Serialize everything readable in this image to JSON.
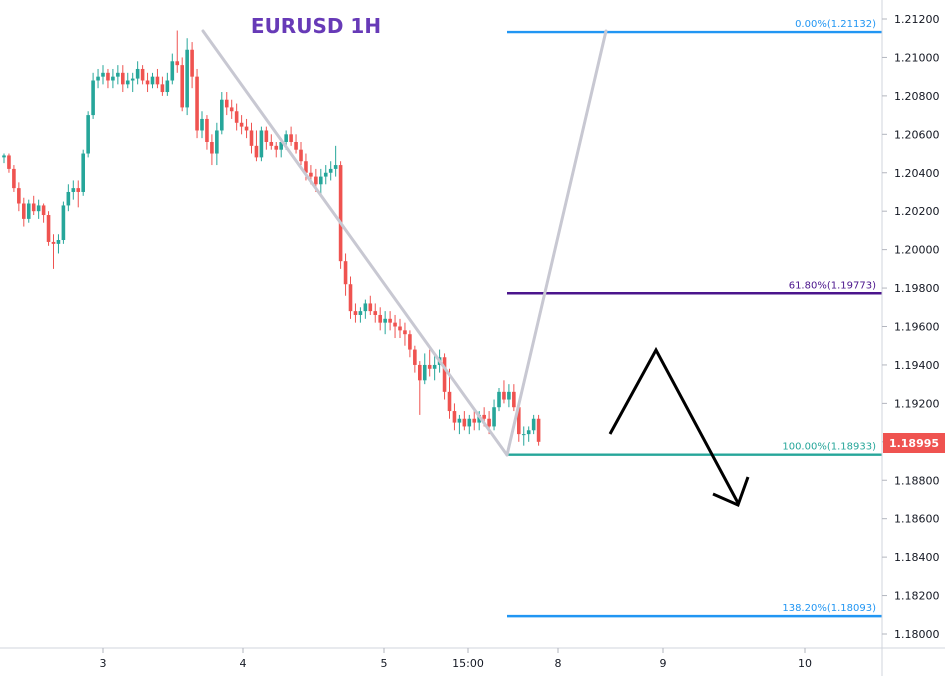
{
  "chart_data": {
    "type": "candlestick",
    "title": "EURUSD 1H",
    "xlabel": "",
    "ylabel": "",
    "ylim": [
      1.179,
      1.213
    ],
    "y_ticks": [
      "1.21200",
      "1.21000",
      "1.20800",
      "1.20600",
      "1.20400",
      "1.20200",
      "1.20000",
      "1.19800",
      "1.19600",
      "1.19400",
      "1.19200",
      "1.19000",
      "1.18800",
      "1.18600",
      "1.18400",
      "1.18200",
      "1.18000"
    ],
    "x_ticks": [
      "3",
      "4",
      "5",
      "15:00",
      "8",
      "9",
      "10"
    ],
    "grid": false,
    "current_price": "1.18995",
    "colors": {
      "up": "#26a69a",
      "down": "#ef5350",
      "fib_0": "#2196f3",
      "fib_618": "#4a148c",
      "fib_100": "#26a69a",
      "fib_1382": "#2196f3",
      "trend": "#c8c8d2",
      "title": "#673ab7",
      "price_tag": "#ef5350"
    },
    "fib_levels": [
      {
        "label": "0.00%(1.21132)",
        "price": 1.21132,
        "color": "#2196f3"
      },
      {
        "label": "61.80%(1.19773)",
        "price": 1.19773,
        "color": "#4a148c"
      },
      {
        "label": "100.00%(1.18933)",
        "price": 1.18933,
        "color": "#26a69a"
      },
      {
        "label": "138.20%(1.18093)",
        "price": 1.18093,
        "color": "#2196f3"
      }
    ],
    "candles": [
      [
        1.2048,
        1.205,
        1.2045,
        1.2049
      ],
      [
        1.2049,
        1.205,
        1.204,
        1.2042
      ],
      [
        1.2042,
        1.2044,
        1.203,
        1.2032
      ],
      [
        1.2032,
        1.2035,
        1.202,
        1.2024
      ],
      [
        1.2024,
        1.2027,
        1.2012,
        1.2016
      ],
      [
        1.2016,
        1.2026,
        1.2014,
        1.2024
      ],
      [
        1.2024,
        1.2028,
        1.2018,
        1.202
      ],
      [
        1.202,
        1.2026,
        1.2016,
        1.2023
      ],
      [
        1.2023,
        1.2024,
        1.2014,
        1.2018
      ],
      [
        1.2018,
        1.202,
        1.2002,
        1.2004
      ],
      [
        1.2004,
        1.2008,
        1.199,
        1.2003
      ],
      [
        1.2003,
        1.2008,
        1.1998,
        1.2005
      ],
      [
        1.2005,
        1.2025,
        1.2003,
        1.2023
      ],
      [
        1.2023,
        1.2034,
        1.202,
        1.203
      ],
      [
        1.203,
        1.2036,
        1.2026,
        1.2032
      ],
      [
        1.2032,
        1.2036,
        1.2022,
        1.203
      ],
      [
        1.203,
        1.2052,
        1.2028,
        1.205
      ],
      [
        1.205,
        1.2072,
        1.2048,
        1.207
      ],
      [
        1.207,
        1.2092,
        1.2068,
        1.2088
      ],
      [
        1.2088,
        1.2094,
        1.2084,
        1.209
      ],
      [
        1.209,
        1.2096,
        1.2086,
        1.2092
      ],
      [
        1.2092,
        1.2094,
        1.2084,
        1.2088
      ],
      [
        1.2088,
        1.2094,
        1.2084,
        1.209
      ],
      [
        1.209,
        1.2096,
        1.2086,
        1.2092
      ],
      [
        1.2092,
        1.2096,
        1.2082,
        1.2086
      ],
      [
        1.2086,
        1.2092,
        1.2084,
        1.2088
      ],
      [
        1.2088,
        1.2092,
        1.2082,
        1.2089
      ],
      [
        1.2089,
        1.2098,
        1.2086,
        1.2094
      ],
      [
        1.2094,
        1.2096,
        1.2086,
        1.2088
      ],
      [
        1.2088,
        1.2092,
        1.2082,
        1.2086
      ],
      [
        1.2086,
        1.2092,
        1.2084,
        1.209
      ],
      [
        1.209,
        1.2094,
        1.2084,
        1.2086
      ],
      [
        1.2086,
        1.209,
        1.208,
        1.2082
      ],
      [
        1.2082,
        1.2092,
        1.208,
        1.2088
      ],
      [
        1.2088,
        1.2102,
        1.2086,
        1.2098
      ],
      [
        1.2098,
        1.2114,
        1.2092,
        1.2096
      ],
      [
        1.2096,
        1.21,
        1.2072,
        1.2074
      ],
      [
        1.2074,
        1.211,
        1.207,
        1.2104
      ],
      [
        1.2104,
        1.2108,
        1.2084,
        1.209
      ],
      [
        1.209,
        1.2094,
        1.2058,
        1.2062
      ],
      [
        1.2062,
        1.2072,
        1.2058,
        1.2068
      ],
      [
        1.2068,
        1.207,
        1.2052,
        1.2056
      ],
      [
        1.2056,
        1.206,
        1.2044,
        1.205
      ],
      [
        1.205,
        1.2066,
        1.2044,
        1.2062
      ],
      [
        1.2062,
        1.2082,
        1.206,
        1.2078
      ],
      [
        1.2078,
        1.2082,
        1.207,
        1.2074
      ],
      [
        1.2074,
        1.2078,
        1.2068,
        1.2072
      ],
      [
        1.2072,
        1.2076,
        1.2062,
        1.2066
      ],
      [
        1.2066,
        1.207,
        1.206,
        1.2064
      ],
      [
        1.2064,
        1.2068,
        1.2058,
        1.2062
      ],
      [
        1.2062,
        1.2066,
        1.205,
        1.2054
      ],
      [
        1.2054,
        1.2062,
        1.2046,
        1.2048
      ],
      [
        1.2048,
        1.2064,
        1.2046,
        1.2062
      ],
      [
        1.2062,
        1.2064,
        1.2052,
        1.2056
      ],
      [
        1.2056,
        1.206,
        1.2052,
        1.2054
      ],
      [
        1.2054,
        1.2056,
        1.2048,
        1.2052
      ],
      [
        1.2052,
        1.2058,
        1.2048,
        1.2056
      ],
      [
        1.2056,
        1.2062,
        1.2052,
        1.206
      ],
      [
        1.206,
        1.2064,
        1.2054,
        1.2056
      ],
      [
        1.2056,
        1.206,
        1.205,
        1.2052
      ],
      [
        1.2052,
        1.2056,
        1.2044,
        1.2046
      ],
      [
        1.2046,
        1.205,
        1.2036,
        1.204
      ],
      [
        1.204,
        1.2044,
        1.2034,
        1.2038
      ],
      [
        1.2038,
        1.2042,
        1.203,
        1.2034
      ],
      [
        1.2034,
        1.2042,
        1.2028,
        1.2038
      ],
      [
        1.2038,
        1.2044,
        1.2034,
        1.204
      ],
      [
        1.204,
        1.2046,
        1.2036,
        1.2042
      ],
      [
        1.2042,
        1.2054,
        1.2038,
        1.2044
      ],
      [
        1.2044,
        1.2046,
        1.199,
        1.1994
      ],
      [
        1.1994,
        1.1998,
        1.1976,
        1.1982
      ],
      [
        1.1982,
        1.1986,
        1.1964,
        1.1968
      ],
      [
        1.1968,
        1.1972,
        1.1962,
        1.1966
      ],
      [
        1.1966,
        1.197,
        1.1962,
        1.1968
      ],
      [
        1.1968,
        1.1974,
        1.1964,
        1.1972
      ],
      [
        1.1972,
        1.1976,
        1.1966,
        1.1968
      ],
      [
        1.1968,
        1.1972,
        1.1962,
        1.1966
      ],
      [
        1.1966,
        1.197,
        1.1958,
        1.1962
      ],
      [
        1.1962,
        1.1968,
        1.1956,
        1.1964
      ],
      [
        1.1964,
        1.1968,
        1.1958,
        1.1962
      ],
      [
        1.1962,
        1.1966,
        1.1954,
        1.196
      ],
      [
        1.196,
        1.1964,
        1.1954,
        1.1958
      ],
      [
        1.1958,
        1.1962,
        1.195,
        1.1956
      ],
      [
        1.1956,
        1.1958,
        1.1944,
        1.1948
      ],
      [
        1.1948,
        1.195,
        1.1936,
        1.194
      ],
      [
        1.194,
        1.1942,
        1.1914,
        1.1932
      ],
      [
        1.1932,
        1.1946,
        1.193,
        1.194
      ],
      [
        1.194,
        1.1948,
        1.1934,
        1.1938
      ],
      [
        1.1938,
        1.1946,
        1.1932,
        1.194
      ],
      [
        1.194,
        1.1948,
        1.1936,
        1.1944
      ],
      [
        1.1944,
        1.1946,
        1.1922,
        1.1926
      ],
      [
        1.1926,
        1.1938,
        1.1912,
        1.1916
      ],
      [
        1.1916,
        1.192,
        1.1906,
        1.191
      ],
      [
        1.191,
        1.1914,
        1.1904,
        1.1912
      ],
      [
        1.1912,
        1.1916,
        1.1906,
        1.1908
      ],
      [
        1.1908,
        1.1914,
        1.1904,
        1.1912
      ],
      [
        1.1912,
        1.1916,
        1.1906,
        1.191
      ],
      [
        1.191,
        1.1916,
        1.1906,
        1.1914
      ],
      [
        1.1914,
        1.1918,
        1.1908,
        1.1912
      ],
      [
        1.1912,
        1.1916,
        1.1904,
        1.1908
      ],
      [
        1.1908,
        1.1922,
        1.1906,
        1.1918
      ],
      [
        1.1918,
        1.1928,
        1.1916,
        1.1926
      ],
      [
        1.1926,
        1.1932,
        1.192,
        1.1922
      ],
      [
        1.1922,
        1.193,
        1.1918,
        1.1926
      ],
      [
        1.1926,
        1.193,
        1.1916,
        1.1918
      ],
      [
        1.1918,
        1.192,
        1.19,
        1.1904
      ],
      [
        1.1904,
        1.1908,
        1.1898,
        1.1904
      ],
      [
        1.1904,
        1.1908,
        1.19,
        1.1906
      ],
      [
        1.1906,
        1.1914,
        1.1904,
        1.1912
      ],
      [
        1.1912,
        1.1914,
        1.1898,
        1.19
      ]
    ],
    "trend_lines": [
      [
        [
          0,
          1.21132
        ],
        [
          82,
          1.18933
        ]
      ],
      [
        [
          82,
          1.18933
        ],
        [
          96,
          1.21132
        ]
      ]
    ],
    "projection_path": [
      [
        100,
        1.1903
      ],
      [
        107,
        1.1948
      ],
      [
        118,
        1.1868
      ]
    ]
  }
}
